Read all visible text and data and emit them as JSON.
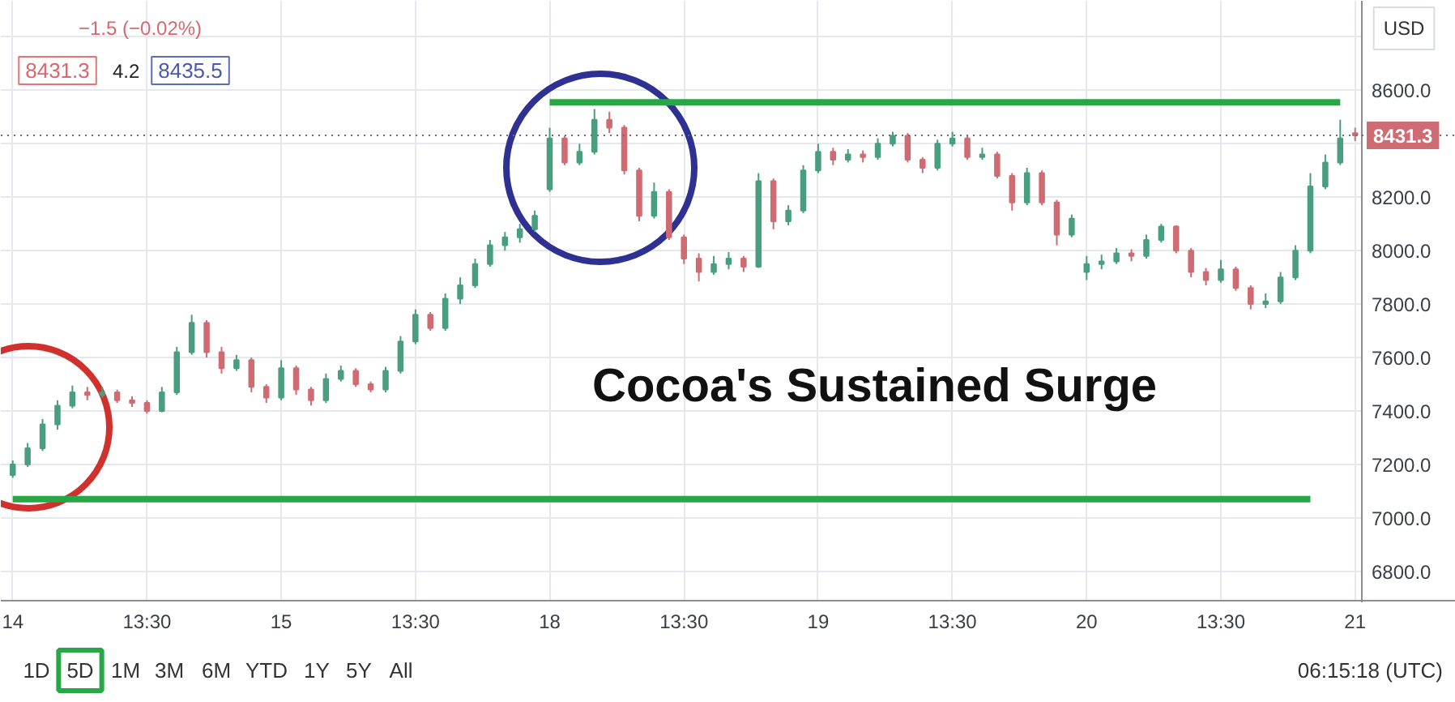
{
  "chart_data": {
    "type": "candlestick",
    "title": "Cocoa's Sustained Surge",
    "categories": [
      "14",
      null,
      null,
      null,
      null,
      null,
      null,
      null,
      null,
      "13:30",
      null,
      null,
      null,
      null,
      null,
      null,
      null,
      null,
      "15",
      null,
      null,
      null,
      null,
      null,
      null,
      null,
      null,
      "13:30",
      null,
      null,
      null,
      null,
      null,
      null,
      null,
      null,
      "18",
      null,
      null,
      null,
      null,
      null,
      null,
      null,
      null,
      "13:30",
      null,
      null,
      null,
      null,
      null,
      null,
      null,
      null,
      "19",
      null,
      null,
      null,
      null,
      null,
      null,
      null,
      null,
      "13:30",
      null,
      null,
      null,
      null,
      null,
      null,
      null,
      null,
      "20",
      null,
      null,
      null,
      null,
      null,
      null,
      null,
      null,
      "13:30",
      null,
      null,
      null,
      null,
      null,
      null,
      null,
      null,
      "21"
    ],
    "ohlc": [
      [
        7160,
        7215,
        7150,
        7200
      ],
      [
        7200,
        7280,
        7190,
        7260
      ],
      [
        7260,
        7370,
        7250,
        7350
      ],
      [
        7350,
        7440,
        7330,
        7420
      ],
      [
        7420,
        7495,
        7410,
        7470
      ],
      [
        7470,
        7490,
        7440,
        7460
      ],
      [
        7460,
        7490,
        7450,
        7470
      ],
      [
        7470,
        7480,
        7430,
        7440
      ],
      [
        7440,
        7455,
        7415,
        7430
      ],
      [
        7430,
        7440,
        7390,
        7400
      ],
      [
        7400,
        7490,
        7395,
        7470
      ],
      [
        7470,
        7640,
        7460,
        7620
      ],
      [
        7620,
        7760,
        7610,
        7730
      ],
      [
        7730,
        7740,
        7600,
        7620
      ],
      [
        7620,
        7640,
        7540,
        7560
      ],
      [
        7560,
        7610,
        7550,
        7590
      ],
      [
        7590,
        7600,
        7470,
        7490
      ],
      [
        7490,
        7500,
        7430,
        7450
      ],
      [
        7450,
        7590,
        7440,
        7560
      ],
      [
        7560,
        7570,
        7460,
        7480
      ],
      [
        7480,
        7490,
        7420,
        7440
      ],
      [
        7440,
        7540,
        7430,
        7520
      ],
      [
        7520,
        7570,
        7510,
        7550
      ],
      [
        7550,
        7560,
        7490,
        7500
      ],
      [
        7500,
        7510,
        7470,
        7480
      ],
      [
        7480,
        7565,
        7470,
        7550
      ],
      [
        7550,
        7680,
        7540,
        7660
      ],
      [
        7660,
        7780,
        7650,
        7760
      ],
      [
        7760,
        7770,
        7700,
        7710
      ],
      [
        7710,
        7840,
        7700,
        7820
      ],
      [
        7820,
        7900,
        7800,
        7870
      ],
      [
        7870,
        7970,
        7860,
        7950
      ],
      [
        7950,
        8040,
        7940,
        8020
      ],
      [
        8020,
        8070,
        8000,
        8050
      ],
      [
        8050,
        8100,
        8030,
        8080
      ],
      [
        8080,
        8150,
        8070,
        8130
      ],
      [
        8230,
        8460,
        8220,
        8420
      ],
      [
        8420,
        8430,
        8320,
        8330
      ],
      [
        8330,
        8400,
        8320,
        8370
      ],
      [
        8370,
        8530,
        8360,
        8490
      ],
      [
        8490,
        8520,
        8440,
        8460
      ],
      [
        8460,
        8470,
        8285,
        8300
      ],
      [
        8300,
        8310,
        8110,
        8130
      ],
      [
        8130,
        8255,
        8120,
        8220
      ],
      [
        8220,
        8230,
        8040,
        8050
      ],
      [
        8050,
        8060,
        7950,
        7970
      ],
      [
        7970,
        7990,
        7885,
        7920
      ],
      [
        7920,
        7980,
        7910,
        7950
      ],
      [
        7950,
        7995,
        7930,
        7970
      ],
      [
        7970,
        7980,
        7920,
        7940
      ],
      [
        7940,
        8290,
        7935,
        8260
      ],
      [
        8260,
        8270,
        8080,
        8110
      ],
      [
        8110,
        8170,
        8095,
        8150
      ],
      [
        8150,
        8320,
        8140,
        8300
      ],
      [
        8300,
        8400,
        8290,
        8370
      ],
      [
        8370,
        8385,
        8320,
        8340
      ],
      [
        8340,
        8380,
        8330,
        8360
      ],
      [
        8360,
        8375,
        8330,
        8350
      ],
      [
        8350,
        8420,
        8340,
        8400
      ],
      [
        8400,
        8445,
        8390,
        8430
      ],
      [
        8430,
        8440,
        8330,
        8340
      ],
      [
        8340,
        8350,
        8290,
        8310
      ],
      [
        8310,
        8415,
        8300,
        8400
      ],
      [
        8400,
        8445,
        8390,
        8420
      ],
      [
        8420,
        8430,
        8340,
        8350
      ],
      [
        8350,
        8385,
        8340,
        8360
      ],
      [
        8360,
        8370,
        8270,
        8280
      ],
      [
        8280,
        8290,
        8150,
        8180
      ],
      [
        8180,
        8310,
        8170,
        8290
      ],
      [
        8290,
        8300,
        8170,
        8180
      ],
      [
        8180,
        8190,
        8020,
        8060
      ],
      [
        8060,
        8135,
        8050,
        8120
      ],
      [
        7920,
        7980,
        7890,
        7950
      ],
      [
        7950,
        7985,
        7930,
        7960
      ],
      [
        7960,
        8010,
        7950,
        7990
      ],
      [
        7990,
        8005,
        7960,
        7980
      ],
      [
        7980,
        8060,
        7970,
        8040
      ],
      [
        8040,
        8100,
        8030,
        8090
      ],
      [
        8090,
        8095,
        7990,
        8000
      ],
      [
        8000,
        8010,
        7900,
        7920
      ],
      [
        7920,
        7935,
        7870,
        7890
      ],
      [
        7890,
        7965,
        7880,
        7930
      ],
      [
        7930,
        7940,
        7850,
        7860
      ],
      [
        7860,
        7870,
        7780,
        7800
      ],
      [
        7800,
        7840,
        7785,
        7810
      ],
      [
        7810,
        7920,
        7800,
        7900
      ],
      [
        7900,
        8020,
        7890,
        8000
      ],
      [
        8000,
        8290,
        7990,
        8240
      ],
      [
        8240,
        8360,
        8230,
        8330
      ],
      [
        8330,
        8490,
        8320,
        8420
      ],
      [
        8440,
        8460,
        8410,
        8431.3
      ]
    ],
    "colors": [
      "#4a9e80",
      "#4a9e80",
      "#4a9e80",
      "#4a9e80",
      "#4a9e80",
      "#cf6b72",
      "#4a9e80",
      "#cf6b72",
      "#cf6b72",
      "#cf6b72",
      "#4a9e80",
      "#4a9e80",
      "#4a9e80",
      "#cf6b72",
      "#cf6b72",
      "#4a9e80",
      "#cf6b72",
      "#cf6b72",
      "#4a9e80",
      "#cf6b72",
      "#cf6b72",
      "#4a9e80",
      "#4a9e80",
      "#cf6b72",
      "#cf6b72",
      "#4a9e80",
      "#4a9e80",
      "#4a9e80",
      "#cf6b72",
      "#4a9e80",
      "#4a9e80",
      "#4a9e80",
      "#4a9e80",
      "#4a9e80",
      "#4a9e80",
      "#4a9e80",
      "#4a9e80",
      "#cf6b72",
      "#4a9e80",
      "#4a9e80",
      "#cf6b72",
      "#cf6b72",
      "#cf6b72",
      "#4a9e80",
      "#cf6b72",
      "#cf6b72",
      "#cf6b72",
      "#4a9e80",
      "#4a9e80",
      "#cf6b72",
      "#4a9e80",
      "#cf6b72",
      "#4a9e80",
      "#4a9e80",
      "#4a9e80",
      "#cf6b72",
      "#4a9e80",
      "#cf6b72",
      "#4a9e80",
      "#4a9e80",
      "#cf6b72",
      "#cf6b72",
      "#4a9e80",
      "#4a9e80",
      "#cf6b72",
      "#4a9e80",
      "#cf6b72",
      "#cf6b72",
      "#4a9e80",
      "#cf6b72",
      "#cf6b72",
      "#4a9e80",
      "#4a9e80",
      "#4a9e80",
      "#4a9e80",
      "#cf6b72",
      "#4a9e80",
      "#4a9e80",
      "#cf6b72",
      "#cf6b72",
      "#cf6b72",
      "#4a9e80",
      "#cf6b72",
      "#cf6b72",
      "#4a9e80",
      "#4a9e80",
      "#4a9e80",
      "#4a9e80",
      "#4a9e80",
      "#4a9e80",
      "#cf6b72"
    ],
    "series": [
      {
        "type": "line",
        "color": "#27a745",
        "values": [
          null,
          null,
          null,
          null,
          null,
          null,
          null,
          null,
          null,
          null,
          null,
          null,
          null,
          null,
          null,
          null,
          null,
          null,
          null,
          null,
          null,
          null,
          null,
          null,
          null,
          null,
          null,
          null,
          null,
          null,
          null,
          null,
          null,
          null,
          null,
          null,
          8555,
          8555,
          8555,
          8555,
          8555,
          8555,
          8555,
          8555,
          8555,
          8555,
          8555,
          8555,
          8555,
          8555,
          8555,
          8555,
          8555,
          8555,
          8555,
          8555,
          8555,
          8555,
          8555,
          8555,
          8555,
          8555,
          8555,
          8555,
          8555,
          8555,
          8555,
          8555,
          8555,
          8555,
          8555,
          8555,
          8555,
          8555,
          8555,
          8555,
          8555,
          8555,
          8555,
          8555,
          8555,
          8555,
          8555,
          8555,
          8555,
          8555,
          8555,
          8555,
          8555,
          8555,
          null
        ]
      },
      {
        "type": "line",
        "color": "#27a745",
        "values": [
          7070,
          7070,
          7070,
          7070,
          7070,
          7070,
          7070,
          7070,
          7070,
          7070,
          7070,
          7070,
          7070,
          7070,
          7070,
          7070,
          7070,
          7070,
          7070,
          7070,
          7070,
          7070,
          7070,
          7070,
          7070,
          7070,
          7070,
          7070,
          7070,
          7070,
          7070,
          7070,
          7070,
          7070,
          7070,
          7070,
          7070,
          7070,
          7070,
          7070,
          7070,
          7070,
          7070,
          7070,
          7070,
          7070,
          7070,
          7070,
          7070,
          7070,
          7070,
          7070,
          7070,
          7070,
          7070,
          7070,
          7070,
          7070,
          7070,
          7070,
          7070,
          7070,
          7070,
          7070,
          7070,
          7070,
          7070,
          7070,
          7070,
          7070,
          7070,
          7070,
          7070,
          7070,
          7070,
          7070,
          7070,
          7070,
          7070,
          7070,
          7070,
          7070,
          7070,
          7070,
          7070,
          7070,
          7070,
          7070,
          null,
          null,
          null
        ]
      }
    ],
    "ylim": [
      6690,
      8935
    ],
    "yticks": [
      {
        "value": 6800,
        "label": "6800.0"
      },
      {
        "value": 7000,
        "label": "7000.0"
      },
      {
        "value": 7200,
        "label": "7200.0"
      },
      {
        "value": 7400,
        "label": "7400.0"
      },
      {
        "value": 7600,
        "label": "7600.0"
      },
      {
        "value": 7800,
        "label": "7800.0"
      },
      {
        "value": 8000,
        "label": "8000.0"
      },
      {
        "value": 8200,
        "label": "8200.0"
      },
      {
        "value": 8400,
        "label": null
      },
      {
        "value": 8600,
        "label": "8600.0"
      },
      {
        "value": 8800,
        "label": null
      }
    ],
    "ref_lines": [
      {
        "axis": "y",
        "value": 8431.3,
        "label": "8431.3",
        "color": "#6a6d78",
        "line_style": "dotted"
      }
    ],
    "grid": true,
    "annotations": [
      "−1.5 (−0.02%)",
      "8431.3",
      "4.2",
      "8435.5",
      "USD",
      "1D",
      "5D",
      "1M",
      "3M",
      "6M",
      "YTD",
      "1Y",
      "5Y",
      "All",
      "06:15:18 (UTC)"
    ]
  }
}
